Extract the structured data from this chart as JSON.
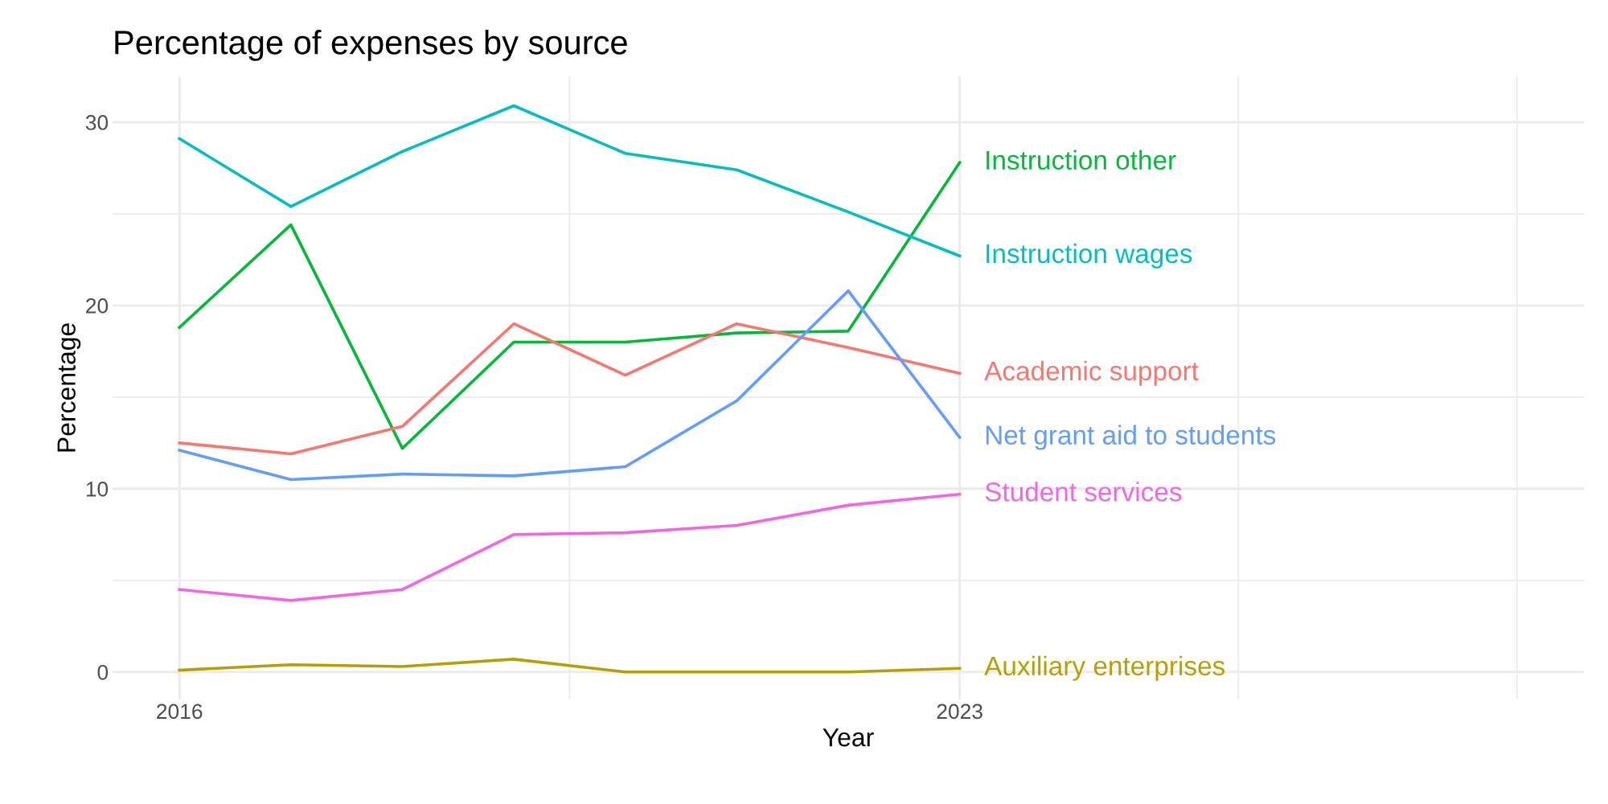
{
  "chart_data": {
    "type": "line",
    "title": "Percentage of expenses by source",
    "xlabel": "Year",
    "ylabel": "Percentage",
    "x": [
      2016,
      2017,
      2018,
      2019,
      2020,
      2021,
      2022,
      2023
    ],
    "series": [
      {
        "name": "Instruction other",
        "color": "#00ba38",
        "values": [
          18.8,
          24.4,
          12.2,
          18.0,
          18.0,
          18.5,
          18.6,
          27.8
        ]
      },
      {
        "name": "Instruction wages",
        "color": "#00bfc4",
        "values": [
          29.1,
          25.4,
          28.4,
          30.9,
          28.3,
          27.4,
          25.1,
          22.7
        ]
      },
      {
        "name": "Academic support",
        "color": "#f8766d",
        "values": [
          12.5,
          11.9,
          13.4,
          19.0,
          16.2,
          19.0,
          17.7,
          16.3
        ]
      },
      {
        "name": "Net grant aid to students",
        "color": "#619cff",
        "values": [
          12.1,
          10.5,
          10.8,
          10.7,
          11.2,
          14.8,
          20.8,
          12.8
        ]
      },
      {
        "name": "Student services",
        "color": "#f564e3",
        "values": [
          4.5,
          3.9,
          4.5,
          7.5,
          7.6,
          8.0,
          9.1,
          9.7
        ]
      },
      {
        "name": "Auxiliary enterprises",
        "color": "#b79f00",
        "values": [
          0.1,
          0.4,
          0.3,
          0.7,
          0.0,
          0.0,
          0.0,
          0.2
        ]
      }
    ],
    "xlim": [
      2015.4,
      2028.6
    ],
    "ylim": [
      -1.5,
      32.5
    ],
    "xticks": [
      2016,
      {
        "value": 2019.5,
        "label": null
      },
      2023,
      {
        "value": 2025.5,
        "label": null
      },
      {
        "value": 2028.0,
        "label": null
      }
    ],
    "yticks": [
      0,
      {
        "value": 5,
        "label": null
      },
      10,
      {
        "value": 15,
        "label": null
      },
      20,
      {
        "value": 25,
        "label": null
      },
      30
    ],
    "grid": true,
    "legend": false,
    "marker": "none",
    "line_style": "solid"
  }
}
